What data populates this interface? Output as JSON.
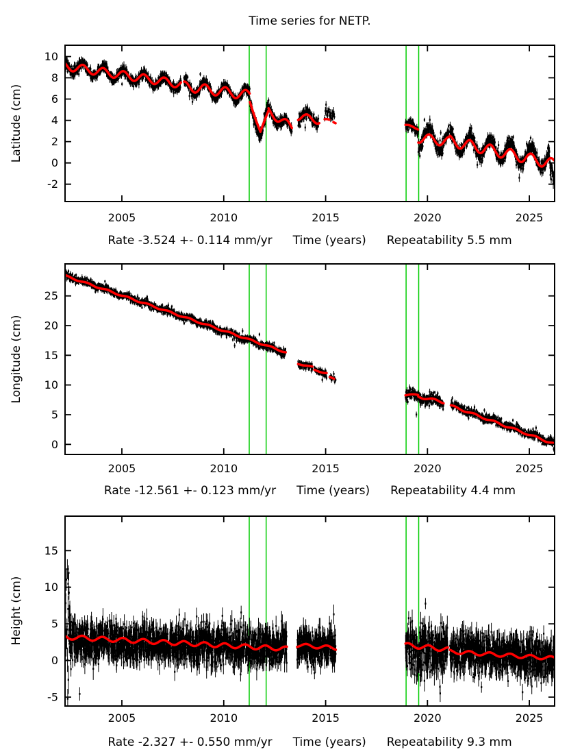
{
  "chart_data": {
    "type": "scatter",
    "title": "Time series for NETP.",
    "grid": false,
    "legend": "none",
    "x": {
      "label": "Time (years)",
      "ticks": [
        2005,
        2010,
        2015,
        2020,
        2025
      ],
      "range": [
        2002.21,
        2026.24
      ]
    },
    "event_lines_x": [
      2011.25,
      2012.08,
      2018.95,
      2019.57
    ],
    "colors": {
      "data_points": "#000000",
      "model_curve": "#ff0000",
      "event_lines": "#00cc00",
      "background": "#ffffff"
    },
    "panels": [
      {
        "name": "latitude",
        "ylabel": "Latitude (cm)",
        "rate_label": "Rate -3.524 +- 0.114 mm/yr",
        "xlabel": "Time (years)",
        "repeatability_label": "Repeatability 5.5 mm",
        "yticks": [
          -2,
          0,
          2,
          4,
          6,
          8,
          10
        ],
        "yrange": [
          -3.63,
          11.06
        ],
        "seasonal_phase": 0.08,
        "model_segments": [
          [
            2002.2,
            2007.9,
            9.1,
            7.4,
            0.38,
            0
          ],
          [
            2008.05,
            2011.28,
            7.2,
            6.35,
            0.45,
            0
          ],
          [
            2011.28,
            2011.8,
            5.7,
            2.95,
            0.1,
            0
          ],
          [
            2011.8,
            2012.2,
            2.95,
            4.9,
            0.05,
            0
          ],
          [
            2012.2,
            2013.35,
            4.85,
            3.3,
            0.4,
            0
          ],
          [
            2013.65,
            2014.7,
            4.35,
            4.0,
            0.35,
            0
          ],
          [
            2014.95,
            2015.5,
            4.0,
            3.85,
            0.15,
            1
          ],
          [
            2018.92,
            2019.55,
            3.5,
            3.25,
            0.12,
            0
          ],
          [
            2019.55,
            2021.05,
            2.35,
            2.0,
            0.45,
            0
          ],
          [
            2021.1,
            2026.2,
            2.05,
            -0.1,
            0.5,
            0
          ]
        ],
        "scatter_segments": [
          [
            2002.2,
            2007.9,
            9.15,
            7.35,
            0.5,
            0.22,
            0.3,
            115
          ],
          [
            2008.05,
            2011.28,
            7.2,
            6.3,
            0.6,
            0.22,
            0.3,
            115
          ],
          [
            2011.28,
            2011.82,
            5.6,
            2.5,
            0.3,
            0.3,
            0.3,
            115
          ],
          [
            2011.82,
            2012.15,
            2.5,
            5.1,
            0.2,
            0.3,
            0.3,
            115
          ],
          [
            2012.15,
            2013.35,
            5.0,
            3.1,
            0.5,
            0.25,
            0.3,
            115
          ],
          [
            2013.65,
            2014.65,
            4.5,
            4.1,
            0.5,
            0.25,
            0.3,
            115
          ],
          [
            2014.95,
            2015.45,
            4.7,
            4.4,
            0.3,
            0.3,
            0.35,
            42
          ],
          [
            2018.92,
            2019.55,
            3.5,
            3.2,
            0.2,
            0.25,
            0.3,
            115
          ],
          [
            2019.55,
            2021.05,
            2.5,
            2.0,
            1.0,
            0.35,
            0.3,
            115
          ],
          [
            2021.1,
            2026.0,
            2.1,
            0.25,
            0.9,
            0.3,
            0.32,
            115
          ],
          [
            2026.0,
            2026.2,
            -0.3,
            -1.6,
            0.2,
            0.4,
            0.45,
            100
          ]
        ]
      },
      {
        "name": "longitude",
        "ylabel": "Longitude (cm)",
        "rate_label": "Rate -12.561 +- 0.123 mm/yr",
        "xlabel": "Time (years)",
        "repeatability_label": "Repeatability 4.4 mm",
        "yticks": [
          0,
          5,
          10,
          15,
          20,
          25
        ],
        "yrange": [
          -1.7,
          30.39
        ],
        "seasonal_phase": 0.3,
        "model_segments": [
          [
            2002.2,
            2013.05,
            28.4,
            15.5,
            0.12,
            0
          ],
          [
            2013.65,
            2014.35,
            13.6,
            13.0,
            0.1,
            0
          ],
          [
            2014.45,
            2015.05,
            12.5,
            12.0,
            0.1,
            0
          ],
          [
            2015.2,
            2015.5,
            11.3,
            10.9,
            0.05,
            1
          ],
          [
            2018.92,
            2019.55,
            8.35,
            8.3,
            0.12,
            0
          ],
          [
            2019.55,
            2020.8,
            8.05,
            7.1,
            0.2,
            0
          ],
          [
            2021.15,
            2026.2,
            6.5,
            0.1,
            0.15,
            0
          ]
        ],
        "scatter_segments": [
          [
            2002.2,
            2013.05,
            28.5,
            15.4,
            0.18,
            0.3,
            0.35,
            115
          ],
          [
            2013.65,
            2014.35,
            13.7,
            12.9,
            0.15,
            0.3,
            0.35,
            115
          ],
          [
            2014.45,
            2015.05,
            12.6,
            11.9,
            0.15,
            0.3,
            0.35,
            115
          ],
          [
            2015.2,
            2015.5,
            11.3,
            10.8,
            0.1,
            0.3,
            0.35,
            50
          ],
          [
            2018.92,
            2019.55,
            8.4,
            8.3,
            0.2,
            0.5,
            0.4,
            115
          ],
          [
            2019.55,
            2020.8,
            8.1,
            7.0,
            0.3,
            0.5,
            0.4,
            115
          ],
          [
            2021.15,
            2026.05,
            6.6,
            0.5,
            0.2,
            0.35,
            0.35,
            115
          ],
          [
            2026.05,
            2026.2,
            0.5,
            0.2,
            0.1,
            0.4,
            0.4,
            90
          ]
        ]
      },
      {
        "name": "height",
        "ylabel": "Height (cm)",
        "rate_label": "Rate -2.327 +- 0.550 mm/yr",
        "xlabel": "Time (years)",
        "repeatability_label": "Repeatability 9.3 mm",
        "yticks": [
          -5,
          0,
          5,
          10,
          15
        ],
        "yrange": [
          -6.22,
          19.71
        ],
        "seasonal_phase": 0.05,
        "model_segments": [
          [
            2002.2,
            2013.1,
            3.2,
            1.6,
            0.3,
            0
          ],
          [
            2013.6,
            2015.5,
            2.1,
            1.7,
            0.25,
            0
          ],
          [
            2018.92,
            2021.0,
            2.1,
            1.5,
            0.3,
            0
          ],
          [
            2021.1,
            2026.2,
            1.2,
            0.3,
            0.25,
            0
          ]
        ],
        "scatter_segments": [
          [
            2002.2,
            2002.48,
            8.5,
            5.0,
            0.0,
            4.8,
            1.5,
            100
          ],
          [
            2002.45,
            2013.1,
            2.6,
            1.8,
            0.3,
            1.3,
            1.1,
            135
          ],
          [
            2013.6,
            2015.5,
            2.0,
            1.8,
            0.3,
            1.2,
            1.1,
            135
          ],
          [
            2018.92,
            2021.0,
            1.7,
            1.3,
            0.4,
            1.6,
            1.2,
            135
          ],
          [
            2021.1,
            2026.05,
            1.2,
            0.3,
            0.3,
            1.4,
            1.1,
            135
          ],
          [
            2026.05,
            2026.2,
            0.3,
            0.0,
            0.0,
            1.8,
            1.5,
            90
          ]
        ]
      }
    ]
  }
}
